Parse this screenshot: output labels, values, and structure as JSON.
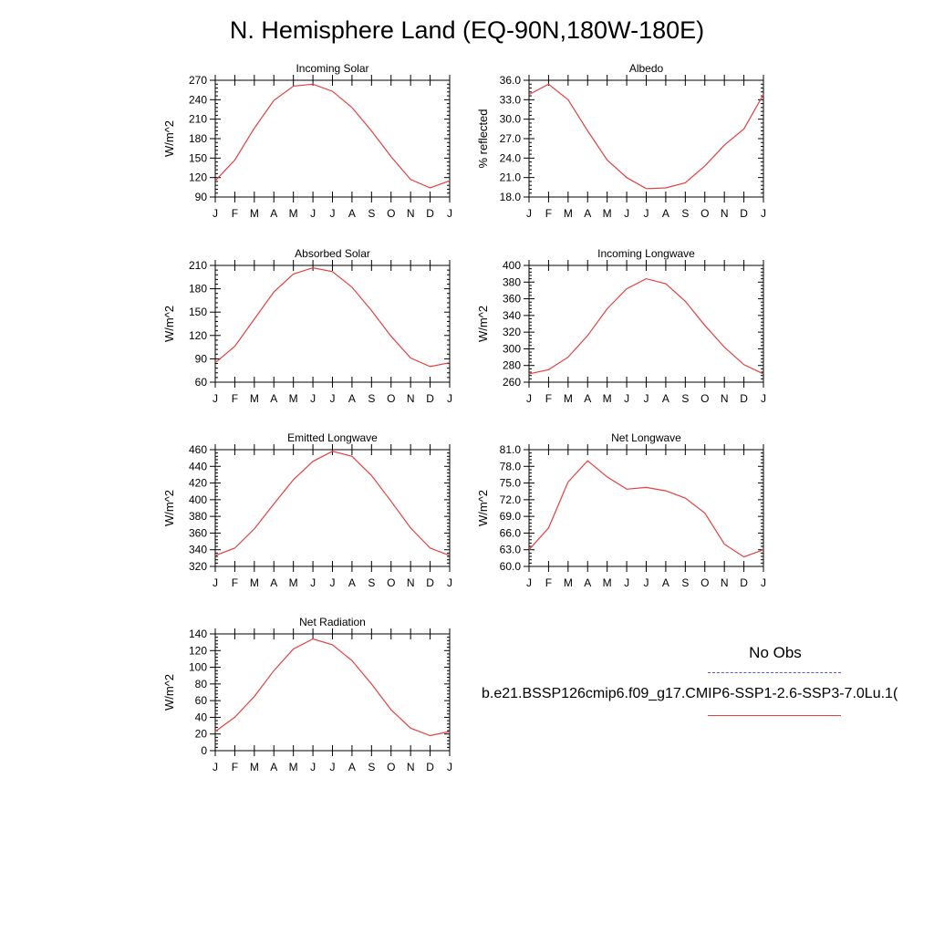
{
  "page": {
    "title": "N. Hemisphere Land (EQ-90N,180W-180E)"
  },
  "legend": {
    "title": "No Obs",
    "case_name": "b.e21.BSSP126cmip6.f09_g17.CMIP6-SSP1-2.6-SSP3-7.0Lu.1(",
    "obs_line_color": "#5555dd",
    "case_line_color": "#e34040"
  },
  "chart_data": [
    {
      "type": "line",
      "title": "Incoming Solar",
      "ylabel": "W/m^2",
      "x": [
        "J",
        "F",
        "M",
        "A",
        "M",
        "J",
        "J",
        "A",
        "S",
        "O",
        "N",
        "D",
        "J"
      ],
      "ylim": [
        90,
        270
      ],
      "yticks": [
        "90",
        "120",
        "150",
        "180",
        "210",
        "240",
        "270"
      ],
      "series": [
        {
          "values": [
            115,
            147,
            196,
            239,
            261,
            264,
            253,
            228,
            192,
            152,
            117,
            104,
            115
          ],
          "color": "#e34040"
        }
      ]
    },
    {
      "type": "line",
      "title": "Albedo",
      "ylabel": "% reflected",
      "x": [
        "J",
        "F",
        "M",
        "A",
        "M",
        "J",
        "J",
        "A",
        "S",
        "O",
        "N",
        "D",
        "J"
      ],
      "ylim": [
        18,
        36
      ],
      "yticks": [
        "18.0",
        "21.0",
        "24.0",
        "27.0",
        "30.0",
        "33.0",
        "36.0"
      ],
      "series": [
        {
          "values": [
            33.8,
            35.4,
            33.0,
            28.2,
            23.7,
            21.0,
            19.3,
            19.4,
            20.2,
            22.8,
            26.0,
            28.5,
            33.8
          ],
          "color": "#e34040"
        }
      ]
    },
    {
      "type": "line",
      "title": "Absorbed Solar",
      "ylabel": "W/m^2",
      "x": [
        "J",
        "F",
        "M",
        "A",
        "M",
        "J",
        "J",
        "A",
        "S",
        "O",
        "N",
        "D",
        "J"
      ],
      "ylim": [
        60,
        210
      ],
      "yticks": [
        "60",
        "90",
        "120",
        "150",
        "180",
        "210"
      ],
      "series": [
        {
          "values": [
            85,
            106,
            141,
            176,
            199,
            207,
            202,
            182,
            152,
            119,
            91,
            80,
            85
          ],
          "color": "#e34040"
        }
      ]
    },
    {
      "type": "line",
      "title": "Incoming Longwave",
      "ylabel": "W/m^2",
      "x": [
        "J",
        "F",
        "M",
        "A",
        "M",
        "J",
        "J",
        "A",
        "S",
        "O",
        "N",
        "D",
        "J"
      ],
      "ylim": [
        260,
        400
      ],
      "yticks": [
        "260",
        "280",
        "300",
        "320",
        "340",
        "360",
        "380",
        "400"
      ],
      "series": [
        {
          "values": [
            270,
            275,
            290,
            316,
            348,
            372,
            384,
            378,
            357,
            328,
            302,
            281,
            270
          ],
          "color": "#e34040"
        }
      ]
    },
    {
      "type": "line",
      "title": "Emitted Longwave",
      "ylabel": "W/m^2",
      "x": [
        "J",
        "F",
        "M",
        "A",
        "M",
        "J",
        "J",
        "A",
        "S",
        "O",
        "N",
        "D",
        "J"
      ],
      "ylim": [
        320,
        460
      ],
      "yticks": [
        "320",
        "340",
        "360",
        "380",
        "400",
        "420",
        "440",
        "460"
      ],
      "series": [
        {
          "values": [
            333,
            342,
            365,
            395,
            424,
            446,
            458,
            452,
            429,
            398,
            366,
            342,
            333
          ],
          "color": "#e34040"
        }
      ]
    },
    {
      "type": "line",
      "title": "Net Longwave",
      "ylabel": "W/m^2",
      "x": [
        "J",
        "F",
        "M",
        "A",
        "M",
        "J",
        "J",
        "A",
        "S",
        "O",
        "N",
        "D",
        "J"
      ],
      "ylim": [
        60,
        81
      ],
      "yticks": [
        "60.0",
        "63.0",
        "66.0",
        "69.0",
        "72.0",
        "75.0",
        "78.0",
        "81.0"
      ],
      "series": [
        {
          "values": [
            63.0,
            66.9,
            75.2,
            79.0,
            76.1,
            73.9,
            74.2,
            73.6,
            72.3,
            69.6,
            64.0,
            61.7,
            63.0
          ],
          "color": "#e34040"
        }
      ]
    },
    {
      "type": "line",
      "title": "Net Radiation",
      "ylabel": "W/m^2",
      "x": [
        "J",
        "F",
        "M",
        "A",
        "M",
        "J",
        "J",
        "A",
        "S",
        "O",
        "N",
        "D",
        "J"
      ],
      "ylim": [
        0,
        140
      ],
      "yticks": [
        "0",
        "20",
        "40",
        "60",
        "80",
        "100",
        "120",
        "140"
      ],
      "series": [
        {
          "values": [
            23,
            40,
            65,
            96,
            122,
            134,
            127,
            108,
            80,
            49,
            27,
            18,
            23
          ],
          "color": "#e34040"
        }
      ]
    }
  ]
}
